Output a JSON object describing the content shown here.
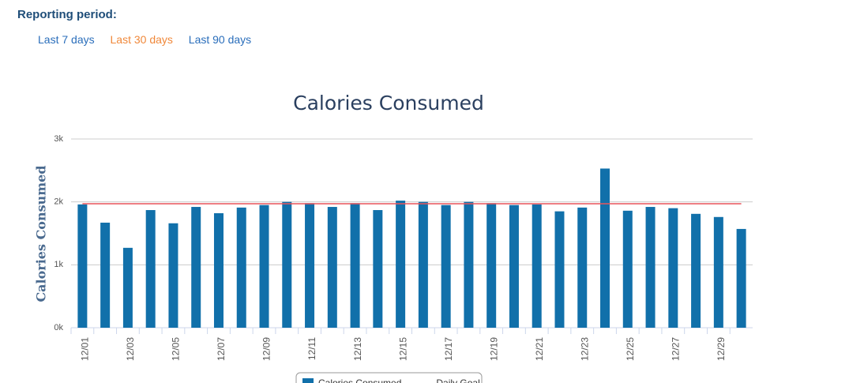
{
  "reporting": {
    "label": "Reporting period:",
    "options": [
      "Last 7 days",
      "Last 30 days",
      "Last 90 days"
    ]
  },
  "chart_data": {
    "type": "bar",
    "title": "Calories Consumed",
    "y_label": "Calories Consumed",
    "categories": [
      "12/01",
      null,
      "12/03",
      null,
      "12/05",
      null,
      "12/07",
      null,
      "12/09",
      null,
      "12/11",
      null,
      "12/13",
      null,
      "12/15",
      null,
      "12/17",
      null,
      "12/19",
      null,
      "12/21",
      null,
      "12/23",
      null,
      "12/25",
      null,
      "12/27",
      null,
      "12/29",
      null
    ],
    "series": [
      {
        "name": "Calories Consumed",
        "color": "#1170aa",
        "values": [
          1960,
          1670,
          1270,
          1870,
          1660,
          1920,
          1820,
          1910,
          1950,
          2000,
          1980,
          1920,
          1980,
          1870,
          2020,
          2000,
          1950,
          2000,
          1980,
          1950,
          1960,
          1850,
          1910,
          2530,
          1860,
          1920,
          1900,
          1810,
          1760,
          1570
        ]
      },
      {
        "name": "Daily Goal",
        "type": "line",
        "color": "#e8555c",
        "values": [
          1970,
          1970,
          1970,
          1970,
          1970,
          1970,
          1970,
          1970,
          1970,
          1970,
          1970,
          1970,
          1970,
          1970,
          1970,
          1970,
          1970,
          1970,
          1970,
          1970,
          1970,
          1970,
          1970,
          1970,
          1970,
          1970,
          1970,
          1970,
          1970,
          1970
        ]
      }
    ],
    "ylim": [
      0,
      3000
    ],
    "yticks": [
      {
        "value": 0,
        "label": "0k"
      },
      {
        "value": 1000,
        "label": "1k"
      },
      {
        "value": 2000,
        "label": "2k"
      },
      {
        "value": 3000,
        "label": "3k"
      }
    ],
    "grid": true
  }
}
